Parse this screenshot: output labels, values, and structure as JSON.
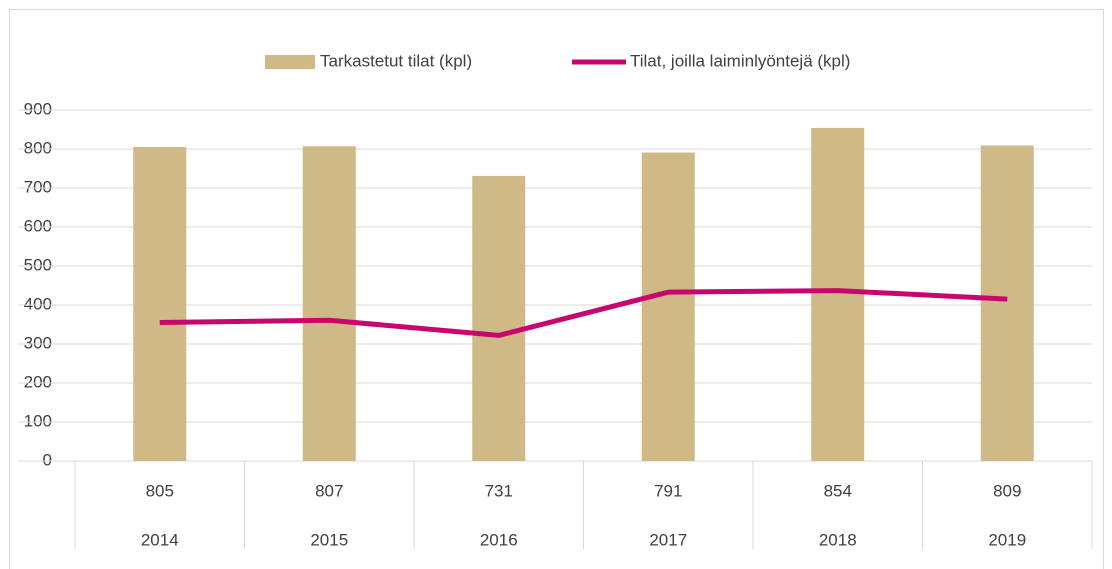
{
  "chart_data": {
    "type": "combo",
    "categories": [
      "2014",
      "2015",
      "2016",
      "2017",
      "2018",
      "2019"
    ],
    "series": [
      {
        "name": "Tarkastetut tilat (kpl)",
        "type": "bar",
        "color": "#cfb987",
        "values": [
          805,
          807,
          731,
          791,
          854,
          809
        ]
      },
      {
        "name": "Tilat, joilla laiminlyöntejä (kpl)",
        "type": "line",
        "color": "#c8076e",
        "values": [
          355,
          361,
          322,
          433,
          437,
          415
        ]
      }
    ],
    "ylim": [
      0,
      900
    ],
    "yticks": [
      0,
      100,
      200,
      300,
      400,
      500,
      600,
      700,
      800,
      900
    ],
    "grid": true
  }
}
